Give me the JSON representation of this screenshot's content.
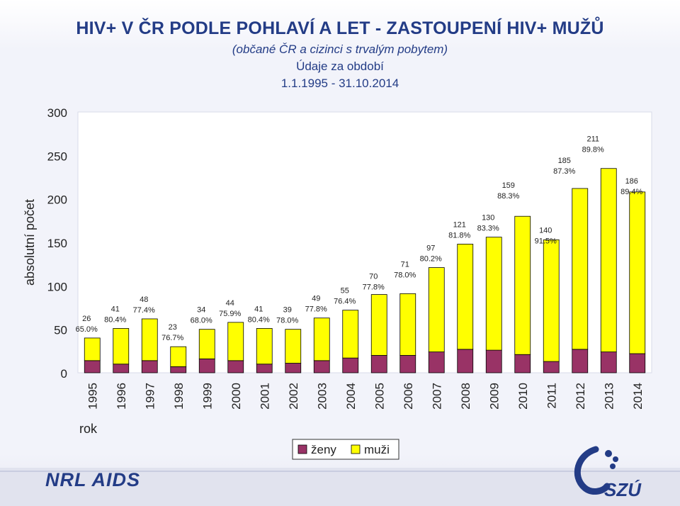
{
  "header": {
    "title": "HIV+ V ČR PODLE POHLAVÍ A LET - ZASTOUPENÍ HIV+ MUŽŮ",
    "subtitle": "(občané ČR a cizinci s trvalým pobytem)",
    "period_line1": "Údaje za období",
    "period_line2": "1.1.1995 - 31.10.2014"
  },
  "logos": {
    "left": "NRL AIDS",
    "right": "SZÚ"
  },
  "colors": {
    "zeny": "#993366",
    "muzi": "#ffff00",
    "text": "#233c86"
  },
  "chart_data": {
    "type": "bar",
    "stacked": true,
    "ylabel": "absolutní počet",
    "xlabel": "rok",
    "ylim": [
      0,
      300
    ],
    "yticks": [
      0,
      50,
      100,
      150,
      200,
      250,
      300
    ],
    "grid": false,
    "legend_position": "bottom",
    "categories": [
      "1995",
      "1996",
      "1997",
      "1998",
      "1999",
      "2000",
      "2001",
      "2002",
      "2003",
      "2004",
      "2005",
      "2006",
      "2007",
      "2008",
      "2009",
      "2010",
      "2011",
      "2012",
      "2013",
      "2014"
    ],
    "series": [
      {
        "name": "ženy",
        "values": [
          14,
          10,
          14,
          7,
          16,
          14,
          10,
          11,
          14,
          17,
          20,
          20,
          24,
          27,
          26,
          21,
          13,
          27,
          24,
          22
        ]
      },
      {
        "name": "muži",
        "values": [
          26,
          41,
          48,
          23,
          34,
          44,
          41,
          39,
          49,
          55,
          70,
          71,
          97,
          121,
          130,
          159,
          140,
          185,
          211,
          186
        ]
      }
    ],
    "data_labels": {
      "counts": [
        "26",
        "41",
        "48",
        "23",
        "34",
        "44",
        "41",
        "39",
        "49",
        "55",
        "70",
        "71",
        "97",
        "121",
        "130",
        "159",
        "140",
        "185",
        "211",
        "186"
      ],
      "shares": [
        "65.0%",
        "80.4%",
        "77.4%",
        "76.7%",
        "68.0%",
        "75.9%",
        "80.4%",
        "78.0%",
        "77.8%",
        "76.4%",
        "77.8%",
        "78.0%",
        "80.2%",
        "81.8%",
        "83.3%",
        "88.3%",
        "91.5%",
        "87.3%",
        "89.8%",
        "89.4%"
      ]
    }
  }
}
